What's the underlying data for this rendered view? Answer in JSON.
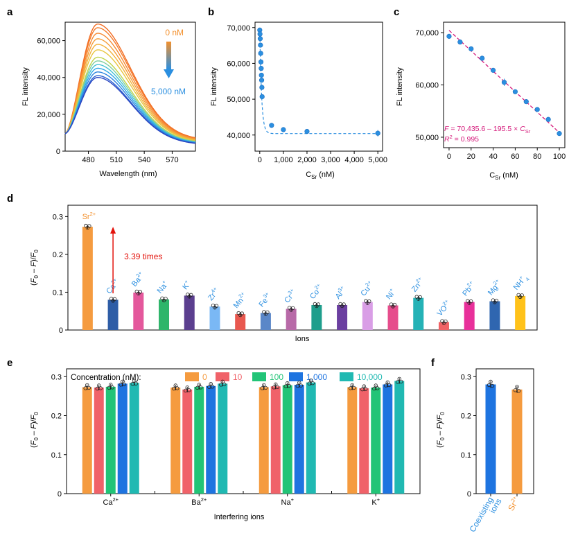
{
  "panel_letters": [
    "a",
    "b",
    "c",
    "d",
    "e",
    "f"
  ],
  "colors": {
    "axis": "#000000",
    "orange": "#f3902c",
    "blue": "#2b8fe0",
    "magenta": "#d4177a",
    "red": "#e3120b",
    "e_series": [
      "#f59b3f",
      "#f06269",
      "#22c477",
      "#1e74e0",
      "#20b9b2"
    ],
    "d_bars": [
      "#f59b3f",
      "#2e5da6",
      "#e4589c",
      "#2db56a",
      "#5b3f8f",
      "#7ab8f5",
      "#e8584f",
      "#5a87c8",
      "#b86aa8",
      "#1e9e8c",
      "#6b3fa0",
      "#d99ee6",
      "#e64d8c",
      "#25b2b6",
      "#f06265",
      "#e8309a",
      "#2f66b0",
      "#ffc21a"
    ]
  },
  "chart_data": [
    {
      "panel": "a",
      "type": "line",
      "xlabel": "Wavelength (nm)",
      "ylabel": "FL intensity",
      "xlim": [
        455,
        595
      ],
      "ylim": [
        0,
        70000
      ],
      "xticks": [
        "480",
        "510",
        "540",
        "570"
      ],
      "yticks": [
        "0",
        "20,000",
        "40,000",
        "60,000"
      ],
      "peak_x": 490,
      "start_y": 9500,
      "end_y_fraction": 0.085,
      "peak_values": [
        69000,
        67000,
        64000,
        61000,
        58000,
        55000,
        51000,
        49000,
        47000,
        45000,
        43000,
        41000,
        40000
      ],
      "series_colors": [
        "#f26b21",
        "#f47a2a",
        "#f68a33",
        "#f59d3a",
        "#f2b13c",
        "#e8c53e",
        "#bfd44a",
        "#7fcfa0",
        "#46c2d4",
        "#2ea8e6",
        "#2b84df",
        "#2a63d2",
        "#2a46c2"
      ],
      "annotations": {
        "top": "0 nM",
        "bottom": "5,000 nM"
      }
    },
    {
      "panel": "b",
      "type": "scatter",
      "xlabel_main": "C",
      "xlabel_sub": "Sr",
      "xlabel_unit": " (nM)",
      "ylabel": "FL intensity",
      "xlim": [
        -200,
        5200
      ],
      "ylim": [
        35500,
        71500
      ],
      "xticks": [
        "0",
        "1,000",
        "2,000",
        "3,000",
        "4,000",
        "5,000"
      ],
      "yticks": [
        "40,000",
        "50,000",
        "60,000",
        "70,000"
      ],
      "x": [
        0,
        10,
        20,
        30,
        40,
        50,
        60,
        70,
        80,
        90,
        100,
        500,
        1000,
        2000,
        5000
      ],
      "y": [
        69300,
        68200,
        66900,
        65100,
        62800,
        60400,
        58600,
        56700,
        55300,
        53300,
        50700,
        42700,
        41500,
        41000,
        40500
      ],
      "err": [
        500,
        500,
        500,
        500,
        500,
        500,
        500,
        500,
        500,
        500,
        500,
        700,
        700,
        700,
        900
      ],
      "fit": "exponential decay",
      "fit_color": "#2b8fe0"
    },
    {
      "panel": "c",
      "type": "scatter",
      "xlabel_main": "C",
      "xlabel_sub": "Sr",
      "xlabel_unit": " (nM)",
      "ylabel": "FL intensity",
      "xlim": [
        -5,
        105
      ],
      "ylim": [
        48000,
        72000
      ],
      "xticks": [
        "0",
        "20",
        "40",
        "60",
        "80",
        "100"
      ],
      "yticks": [
        "50,000",
        "60,000",
        "70,000"
      ],
      "x": [
        0,
        10,
        20,
        30,
        40,
        50,
        60,
        70,
        80,
        90,
        100
      ],
      "y": [
        69300,
        68200,
        66900,
        65100,
        62800,
        60500,
        58700,
        56800,
        55300,
        53400,
        50700
      ],
      "err": [
        300,
        300,
        300,
        400,
        300,
        700,
        300,
        300,
        400,
        300,
        300
      ],
      "fit_line": [
        70435.6,
        -195.5
      ],
      "eq_prefix": "F",
      "eq_text": " = 70,435.6 – 195.5 × ",
      "eq_c": "C",
      "eq_sub": "Sr",
      "r2_prefix": "R",
      "r2_sup": "2",
      "r2_text": " = 0.995"
    },
    {
      "panel": "d",
      "type": "bar",
      "xlabel": "Ions",
      "ylabel": "(F0 – F)/F0",
      "ylim": [
        0,
        0.33
      ],
      "yticks": [
        "0",
        "0.1",
        "0.2",
        "0.3"
      ],
      "ion_base": [
        "Sr",
        "Ca",
        "Ba",
        "Na",
        "K",
        "Zr",
        "Mn",
        "Fe",
        "Cr",
        "Co",
        "Al",
        "Cu",
        "Ni",
        "Zn",
        "VO",
        "Pb",
        "Mg",
        "NH"
      ],
      "ion_sup": [
        "2+",
        "2+",
        "2+",
        "+",
        "+",
        "4+",
        "2+",
        "3+",
        "3+",
        "2+",
        "3+",
        "2+",
        "+",
        "2+",
        "2+",
        "2+",
        "2+",
        "+"
      ],
      "ion_sub": [
        "",
        "",
        "",
        "",
        "",
        "",
        "",
        "",
        "",
        "",
        "",
        "",
        "",
        "",
        "",
        "",
        "",
        "4"
      ],
      "values": [
        0.273,
        0.08,
        0.099,
        0.081,
        0.091,
        0.062,
        0.042,
        0.045,
        0.056,
        0.066,
        0.066,
        0.074,
        0.065,
        0.085,
        0.021,
        0.074,
        0.076,
        0.09
      ],
      "annotation": "3.39 times"
    },
    {
      "panel": "e",
      "type": "bar",
      "xlabel": "Interfering ions",
      "ylabel": "(F0 – F)/F0",
      "ylim": [
        0,
        0.32
      ],
      "yticks": [
        "0",
        "0.1",
        "0.2",
        "0.3"
      ],
      "legend_title": "Concentration (nM):",
      "series_names": [
        "0",
        "10",
        "100",
        "1,000",
        "10,000"
      ],
      "categories_base": [
        "Ca",
        "Ba",
        "Na",
        "K"
      ],
      "categories_sup": [
        "2+",
        "2+",
        "+",
        "+"
      ],
      "values": [
        [
          0.273,
          0.272,
          0.274,
          0.282,
          0.284
        ],
        [
          0.272,
          0.267,
          0.274,
          0.276,
          0.282
        ],
        [
          0.273,
          0.275,
          0.278,
          0.279,
          0.285
        ],
        [
          0.273,
          0.27,
          0.272,
          0.28,
          0.289
        ]
      ]
    },
    {
      "panel": "f",
      "type": "bar",
      "ylabel": "(F0 – F)/F0",
      "ylim": [
        0,
        0.32
      ],
      "yticks": [
        "0",
        "0.1",
        "0.2",
        "0.3"
      ],
      "categories": [
        "Coexisting ions",
        "Sr2+"
      ],
      "label_lines": [
        [
          "Coexisting",
          "ions"
        ],
        [
          "Sr"
        ]
      ],
      "label_sup": [
        "",
        "2+"
      ],
      "values": [
        0.28,
        0.267
      ],
      "bar_colors": [
        "#1e74e0",
        "#f59b3f"
      ],
      "label_colors": [
        "#2b8fe0",
        "#f3902c"
      ]
    }
  ]
}
